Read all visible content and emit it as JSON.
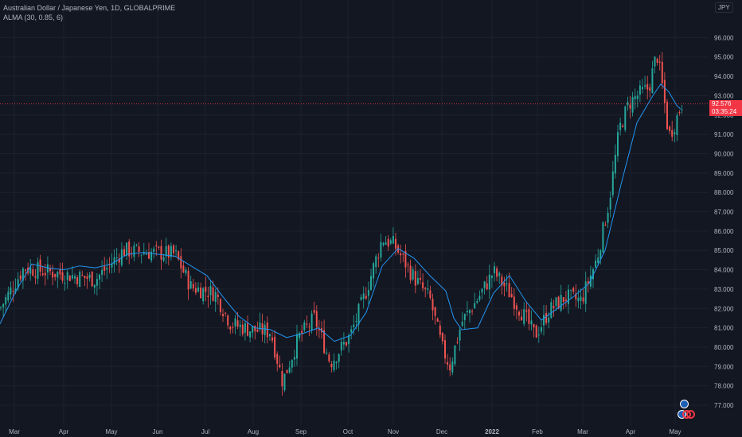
{
  "legend": {
    "symbol": "Australian Dollar / Japanese Yen, 1D, GLOBALPRIME",
    "indicator": "ALMA (30, 0.85, 6)"
  },
  "currency_label": "JPY",
  "price_tag": {
    "price": "92.576",
    "countdown": "03:35:24"
  },
  "colors": {
    "up": "#26a69a",
    "down": "#ef5350",
    "alma": "#2196f3",
    "price_line": "#f23645",
    "grid": "#1e222d",
    "axis_text": "#b2b5be"
  },
  "chart_data": {
    "type": "candlestick",
    "title": "Australian Dollar / Japanese Yen, 1D, GLOBALPRIME",
    "ylim": [
      76.4,
      97.6
    ],
    "y_ticks": [
      "77.000",
      "78.000",
      "79.000",
      "80.000",
      "81.000",
      "82.000",
      "83.000",
      "84.000",
      "85.000",
      "86.000",
      "87.000",
      "88.000",
      "89.000",
      "90.000",
      "91.000",
      "92.000",
      "93.000",
      "94.000",
      "95.000",
      "96.000"
    ],
    "x_ticks": [
      "Mar",
      "Apr",
      "May",
      "Jun",
      "Jul",
      "Aug",
      "Sep",
      "Oct",
      "Nov",
      "Dec",
      "2022",
      "Feb",
      "Mar",
      "Apr",
      "May"
    ],
    "last_price": 92.576,
    "series": [
      {
        "name": "ALMA (30, 0.85, 6)",
        "type": "line",
        "points": [
          [
            0,
            81.2
          ],
          [
            20,
            82.9
          ],
          [
            40,
            84.3
          ],
          [
            60,
            84.1
          ],
          [
            80,
            84.0
          ],
          [
            100,
            84.2
          ],
          [
            120,
            84.1
          ],
          [
            140,
            84.3
          ],
          [
            160,
            84.8
          ],
          [
            180,
            84.9
          ],
          [
            200,
            84.8
          ],
          [
            220,
            84.7
          ],
          [
            240,
            84.2
          ],
          [
            260,
            83.7
          ],
          [
            280,
            82.6
          ],
          [
            300,
            81.6
          ],
          [
            320,
            81.0
          ],
          [
            340,
            80.9
          ],
          [
            360,
            80.5
          ],
          [
            380,
            80.7
          ],
          [
            400,
            81.0
          ],
          [
            420,
            80.3
          ],
          [
            440,
            80.6
          ],
          [
            460,
            81.8
          ],
          [
            480,
            84.2
          ],
          [
            500,
            85.1
          ],
          [
            520,
            84.6
          ],
          [
            540,
            83.7
          ],
          [
            560,
            82.9
          ],
          [
            570,
            81.5
          ],
          [
            580,
            80.9
          ],
          [
            600,
            81.0
          ],
          [
            620,
            82.8
          ],
          [
            640,
            83.7
          ],
          [
            660,
            82.4
          ],
          [
            680,
            81.4
          ],
          [
            700,
            82.0
          ],
          [
            720,
            82.6
          ],
          [
            740,
            83.3
          ],
          [
            760,
            85.0
          ],
          [
            780,
            88.4
          ],
          [
            800,
            91.6
          ],
          [
            820,
            93.0
          ],
          [
            830,
            93.6
          ],
          [
            840,
            93.2
          ],
          [
            850,
            92.5
          ],
          [
            855,
            92.3
          ]
        ]
      }
    ],
    "candles_anchor_closes": [
      [
        0,
        82.0
      ],
      [
        30,
        84.1
      ],
      [
        60,
        83.9
      ],
      [
        90,
        83.7
      ],
      [
        120,
        83.5
      ],
      [
        155,
        85.0
      ],
      [
        190,
        84.9
      ],
      [
        220,
        84.8
      ],
      [
        240,
        83.1
      ],
      [
        270,
        82.8
      ],
      [
        290,
        81.2
      ],
      [
        315,
        80.9
      ],
      [
        340,
        80.8
      ],
      [
        355,
        78.2
      ],
      [
        375,
        80.5
      ],
      [
        395,
        81.5
      ],
      [
        415,
        79.2
      ],
      [
        440,
        80.6
      ],
      [
        460,
        82.9
      ],
      [
        480,
        85.6
      ],
      [
        495,
        85.3
      ],
      [
        520,
        83.6
      ],
      [
        540,
        82.5
      ],
      [
        555,
        80.0
      ],
      [
        565,
        79.0
      ],
      [
        580,
        81.3
      ],
      [
        600,
        82.5
      ],
      [
        620,
        83.9
      ],
      [
        640,
        82.8
      ],
      [
        660,
        81.5
      ],
      [
        672,
        80.6
      ],
      [
        690,
        81.9
      ],
      [
        710,
        82.6
      ],
      [
        730,
        82.4
      ],
      [
        750,
        84.6
      ],
      [
        765,
        87.5
      ],
      [
        778,
        91.3
      ],
      [
        790,
        92.6
      ],
      [
        800,
        93.0
      ],
      [
        815,
        93.4
      ],
      [
        825,
        95.2
      ],
      [
        833,
        93.2
      ],
      [
        840,
        90.9
      ],
      [
        848,
        91.6
      ],
      [
        856,
        92.6
      ]
    ]
  },
  "events": [
    {
      "icon": "flag-au-icon"
    },
    {
      "icon": "flag-au-icon"
    }
  ]
}
